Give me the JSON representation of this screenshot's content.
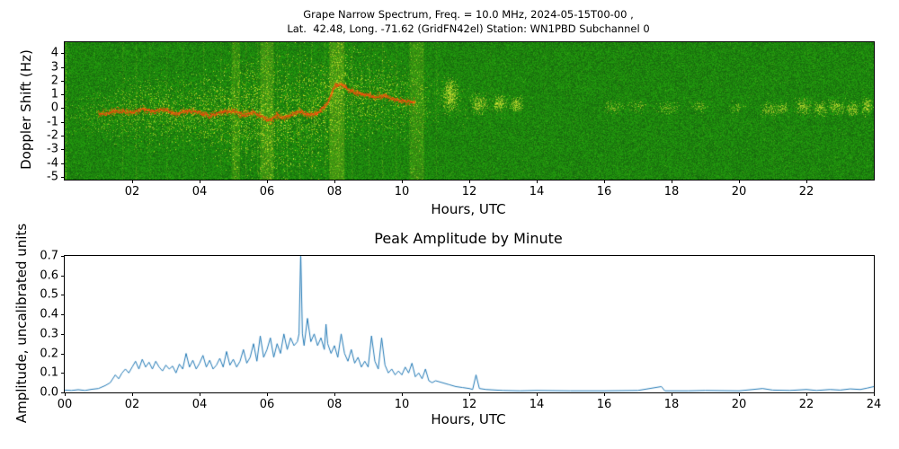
{
  "chart_data": [
    {
      "type": "heatmap",
      "title_line1": "Grape Narrow Spectrum, Freq. = 10.0 MHz, 2024-05-15T00-00 ,",
      "title_line2": "Lat.  42.48, Long. -71.62 (GridFN42el) Station: WN1PBD Subchannel 0",
      "xlabel": "Hours, UTC",
      "ylabel": "Doppler Shift (Hz)",
      "xlim": [
        0,
        24
      ],
      "ylim": [
        -5.2,
        4.8
      ],
      "xticks": [
        2,
        4,
        6,
        8,
        10,
        12,
        14,
        16,
        18,
        20,
        22
      ],
      "xtick_labels": [
        "02",
        "04",
        "06",
        "08",
        "10",
        "12",
        "14",
        "16",
        "18",
        "20",
        "22"
      ],
      "yticks": [
        4,
        3,
        2,
        1,
        0,
        -1,
        -2,
        -3,
        -4,
        -5
      ],
      "ytick_labels": [
        "4",
        "3",
        "2",
        "1",
        "0",
        "-1",
        "-2",
        "-3",
        "-4",
        "-5"
      ],
      "colors": {
        "background_green": "#168c16",
        "noise_yellow": "#f2f53c",
        "trace_red": "#fa3c0f",
        "trace_orange": "#ff9600"
      },
      "noise_envelope": {
        "hours": [
          0,
          1,
          2,
          3,
          4,
          5,
          6,
          7,
          8,
          9,
          10,
          11,
          12,
          13,
          14,
          15,
          16,
          17,
          18,
          19,
          20,
          21,
          22,
          23,
          24
        ],
        "intensity": [
          0.3,
          0.55,
          0.75,
          0.8,
          0.85,
          0.95,
          1.0,
          1.0,
          0.95,
          0.85,
          0.7,
          0.5,
          0.3,
          0.22,
          0.1,
          0.05,
          0.06,
          0.06,
          0.06,
          0.05,
          0.06,
          0.1,
          0.12,
          0.15,
          0.15
        ],
        "spread_hz": [
          1.0,
          1.2,
          1.5,
          1.5,
          1.8,
          2.2,
          2.6,
          2.6,
          2.2,
          2.0,
          1.6,
          1.2,
          0.8,
          0.6,
          0.5,
          0.5,
          0.5,
          0.5,
          0.5,
          0.5,
          0.5,
          0.5,
          0.6,
          0.7,
          0.7
        ]
      },
      "streaks": [
        [
          0.03,
          0.9
        ],
        [
          1.7,
          0.35
        ],
        [
          2.1,
          0.4
        ],
        [
          2.5,
          0.3
        ],
        [
          3.0,
          0.35
        ],
        [
          3.5,
          0.3
        ],
        [
          4.1,
          0.4
        ],
        [
          4.6,
          0.35
        ],
        [
          5.0,
          0.5
        ],
        [
          5.35,
          0.45
        ],
        [
          5.7,
          0.5
        ],
        [
          6.0,
          0.55
        ],
        [
          6.3,
          0.5
        ],
        [
          6.6,
          0.45
        ],
        [
          6.95,
          0.5
        ],
        [
          7.3,
          0.45
        ],
        [
          7.7,
          0.4
        ],
        [
          8.1,
          0.45
        ],
        [
          8.5,
          0.4
        ],
        [
          9.0,
          0.35
        ],
        [
          9.4,
          0.4
        ],
        [
          9.8,
          0.35
        ],
        [
          10.2,
          0.3
        ],
        [
          10.6,
          0.25
        ],
        [
          11.0,
          0.25
        ],
        [
          12.6,
          0.12
        ],
        [
          14.2,
          0.08
        ],
        [
          16.4,
          0.07
        ],
        [
          18.9,
          0.07
        ],
        [
          21.0,
          0.1
        ],
        [
          22.2,
          0.08
        ]
      ],
      "bands": [
        [
          4.95,
          5.2,
          0.5
        ],
        [
          5.8,
          6.2,
          0.7
        ],
        [
          7.85,
          8.3,
          0.8
        ],
        [
          10.25,
          10.65,
          0.55
        ]
      ],
      "clusters": [
        [
          11.45,
          0.9,
          0.12,
          0.7,
          500
        ],
        [
          12.3,
          0.3,
          0.15,
          0.4,
          250
        ],
        [
          12.9,
          0.35,
          0.12,
          0.35,
          200
        ],
        [
          13.4,
          0.25,
          0.12,
          0.3,
          180
        ],
        [
          16.3,
          0.0,
          0.2,
          0.3,
          80
        ],
        [
          17.0,
          0.1,
          0.15,
          0.25,
          60
        ],
        [
          17.9,
          0.0,
          0.2,
          0.3,
          80
        ],
        [
          18.8,
          0.1,
          0.15,
          0.25,
          60
        ],
        [
          19.9,
          0.0,
          0.15,
          0.25,
          50
        ],
        [
          20.9,
          -0.1,
          0.15,
          0.3,
          120
        ],
        [
          21.3,
          0.0,
          0.1,
          0.25,
          90
        ],
        [
          21.9,
          0.1,
          0.15,
          0.35,
          160
        ],
        [
          22.4,
          0.0,
          0.12,
          0.3,
          130
        ],
        [
          22.9,
          0.1,
          0.15,
          0.3,
          150
        ],
        [
          23.4,
          0.0,
          0.12,
          0.3,
          140
        ],
        [
          23.8,
          0.1,
          0.1,
          0.35,
          160
        ]
      ],
      "trace_red_start_hour": 1.0,
      "trace_red_end_hour": 10.4,
      "doppler_trace": [
        [
          0.3,
          -0.6
        ],
        [
          0.8,
          -0.45
        ],
        [
          1.2,
          -0.4
        ],
        [
          1.6,
          -0.2
        ],
        [
          2.0,
          -0.35
        ],
        [
          2.3,
          -0.05
        ],
        [
          2.6,
          -0.25
        ],
        [
          3.0,
          -0.1
        ],
        [
          3.3,
          -0.45
        ],
        [
          3.6,
          -0.2
        ],
        [
          4.0,
          -0.3
        ],
        [
          4.3,
          -0.6
        ],
        [
          4.6,
          -0.3
        ],
        [
          5.0,
          -0.2
        ],
        [
          5.3,
          -0.5
        ],
        [
          5.6,
          -0.3
        ],
        [
          5.9,
          -0.65
        ],
        [
          6.1,
          -0.9
        ],
        [
          6.3,
          -0.5
        ],
        [
          6.5,
          -0.75
        ],
        [
          6.8,
          -0.4
        ],
        [
          7.0,
          -0.25
        ],
        [
          7.2,
          -0.5
        ],
        [
          7.5,
          -0.35
        ],
        [
          7.8,
          0.3
        ],
        [
          8.0,
          1.6
        ],
        [
          8.2,
          1.75
        ],
        [
          8.4,
          1.4
        ],
        [
          8.6,
          1.15
        ],
        [
          8.9,
          1.0
        ],
        [
          9.2,
          0.8
        ],
        [
          9.5,
          0.9
        ],
        [
          9.8,
          0.6
        ],
        [
          10.1,
          0.5
        ],
        [
          10.4,
          0.45
        ],
        [
          10.8,
          0.3
        ],
        [
          11.2,
          0.5
        ],
        [
          11.45,
          1.0
        ],
        [
          11.7,
          0.4
        ],
        [
          12.0,
          0.3
        ],
        [
          12.5,
          0.2
        ],
        [
          13.0,
          0.35
        ],
        [
          13.5,
          0.25
        ]
      ]
    },
    {
      "type": "line",
      "title": "Peak Amplitude by Minute",
      "xlabel": "Hours, UTC",
      "ylabel": "Amplitude, uncalibrated units",
      "xlim": [
        0,
        24
      ],
      "ylim": [
        0,
        0.7
      ],
      "xticks": [
        0,
        2,
        4,
        6,
        8,
        10,
        12,
        14,
        16,
        18,
        20,
        22,
        24
      ],
      "xtick_labels": [
        "00",
        "02",
        "04",
        "06",
        "08",
        "10",
        "12",
        "14",
        "16",
        "18",
        "20",
        "22",
        "24"
      ],
      "yticks": [
        0.0,
        0.1,
        0.2,
        0.3,
        0.4,
        0.5,
        0.6,
        0.7
      ],
      "ytick_labels": [
        "0.0",
        "0.1",
        "0.2",
        "0.3",
        "0.4",
        "0.5",
        "0.6",
        "0.7"
      ],
      "line_color": "#1f77b4",
      "series": [
        {
          "name": "peak_amplitude",
          "points": [
            [
              0,
              0.012
            ],
            [
              0.2,
              0.01
            ],
            [
              0.4,
              0.014
            ],
            [
              0.6,
              0.01
            ],
            [
              0.8,
              0.016
            ],
            [
              1.0,
              0.02
            ],
            [
              1.2,
              0.035
            ],
            [
              1.35,
              0.05
            ],
            [
              1.5,
              0.09
            ],
            [
              1.6,
              0.07
            ],
            [
              1.7,
              0.1
            ],
            [
              1.8,
              0.12
            ],
            [
              1.9,
              0.1
            ],
            [
              2.0,
              0.13
            ],
            [
              2.1,
              0.16
            ],
            [
              2.2,
              0.12
            ],
            [
              2.3,
              0.17
            ],
            [
              2.4,
              0.13
            ],
            [
              2.5,
              0.155
            ],
            [
              2.6,
              0.12
            ],
            [
              2.7,
              0.16
            ],
            [
              2.8,
              0.13
            ],
            [
              2.9,
              0.11
            ],
            [
              3.0,
              0.14
            ],
            [
              3.1,
              0.12
            ],
            [
              3.2,
              0.135
            ],
            [
              3.3,
              0.1
            ],
            [
              3.4,
              0.145
            ],
            [
              3.5,
              0.12
            ],
            [
              3.6,
              0.2
            ],
            [
              3.7,
              0.13
            ],
            [
              3.8,
              0.165
            ],
            [
              3.9,
              0.12
            ],
            [
              4.0,
              0.15
            ],
            [
              4.1,
              0.19
            ],
            [
              4.2,
              0.13
            ],
            [
              4.3,
              0.165
            ],
            [
              4.4,
              0.12
            ],
            [
              4.5,
              0.14
            ],
            [
              4.6,
              0.175
            ],
            [
              4.7,
              0.13
            ],
            [
              4.8,
              0.21
            ],
            [
              4.9,
              0.14
            ],
            [
              5.0,
              0.17
            ],
            [
              5.1,
              0.13
            ],
            [
              5.2,
              0.16
            ],
            [
              5.3,
              0.22
            ],
            [
              5.4,
              0.15
            ],
            [
              5.5,
              0.18
            ],
            [
              5.6,
              0.25
            ],
            [
              5.7,
              0.16
            ],
            [
              5.8,
              0.29
            ],
            [
              5.9,
              0.18
            ],
            [
              6.0,
              0.22
            ],
            [
              6.1,
              0.28
            ],
            [
              6.2,
              0.18
            ],
            [
              6.3,
              0.25
            ],
            [
              6.4,
              0.2
            ],
            [
              6.5,
              0.3
            ],
            [
              6.6,
              0.22
            ],
            [
              6.7,
              0.28
            ],
            [
              6.8,
              0.24
            ],
            [
              6.9,
              0.26
            ],
            [
              6.95,
              0.3
            ],
            [
              7.0,
              0.72
            ],
            [
              7.05,
              0.3
            ],
            [
              7.1,
              0.24
            ],
            [
              7.2,
              0.38
            ],
            [
              7.3,
              0.26
            ],
            [
              7.4,
              0.3
            ],
            [
              7.5,
              0.24
            ],
            [
              7.6,
              0.28
            ],
            [
              7.7,
              0.22
            ],
            [
              7.75,
              0.35
            ],
            [
              7.8,
              0.25
            ],
            [
              7.9,
              0.2
            ],
            [
              8.0,
              0.24
            ],
            [
              8.1,
              0.18
            ],
            [
              8.2,
              0.3
            ],
            [
              8.3,
              0.2
            ],
            [
              8.4,
              0.16
            ],
            [
              8.5,
              0.22
            ],
            [
              8.6,
              0.15
            ],
            [
              8.7,
              0.18
            ],
            [
              8.8,
              0.13
            ],
            [
              8.9,
              0.16
            ],
            [
              9.0,
              0.13
            ],
            [
              9.1,
              0.29
            ],
            [
              9.2,
              0.16
            ],
            [
              9.3,
              0.12
            ],
            [
              9.4,
              0.28
            ],
            [
              9.5,
              0.14
            ],
            [
              9.6,
              0.1
            ],
            [
              9.7,
              0.12
            ],
            [
              9.8,
              0.09
            ],
            [
              9.9,
              0.11
            ],
            [
              10.0,
              0.09
            ],
            [
              10.1,
              0.13
            ],
            [
              10.2,
              0.1
            ],
            [
              10.3,
              0.15
            ],
            [
              10.4,
              0.08
            ],
            [
              10.5,
              0.1
            ],
            [
              10.6,
              0.07
            ],
            [
              10.7,
              0.12
            ],
            [
              10.8,
              0.06
            ],
            [
              10.9,
              0.05
            ],
            [
              11.0,
              0.06
            ],
            [
              11.2,
              0.05
            ],
            [
              11.4,
              0.04
            ],
            [
              11.6,
              0.03
            ],
            [
              11.8,
              0.025
            ],
            [
              12.0,
              0.02
            ],
            [
              12.1,
              0.015
            ],
            [
              12.2,
              0.09
            ],
            [
              12.3,
              0.02
            ],
            [
              12.5,
              0.015
            ],
            [
              13.0,
              0.01
            ],
            [
              13.5,
              0.008
            ],
            [
              14.0,
              0.01
            ],
            [
              15.0,
              0.008
            ],
            [
              16.0,
              0.008
            ],
            [
              17.0,
              0.01
            ],
            [
              17.7,
              0.03
            ],
            [
              17.8,
              0.008
            ],
            [
              18.5,
              0.008
            ],
            [
              19.0,
              0.01
            ],
            [
              20.0,
              0.008
            ],
            [
              20.7,
              0.02
            ],
            [
              21.0,
              0.012
            ],
            [
              21.5,
              0.01
            ],
            [
              22.0,
              0.015
            ],
            [
              22.3,
              0.01
            ],
            [
              22.7,
              0.015
            ],
            [
              23.0,
              0.012
            ],
            [
              23.3,
              0.018
            ],
            [
              23.6,
              0.015
            ],
            [
              23.8,
              0.022
            ],
            [
              24.0,
              0.03
            ]
          ]
        }
      ]
    }
  ]
}
